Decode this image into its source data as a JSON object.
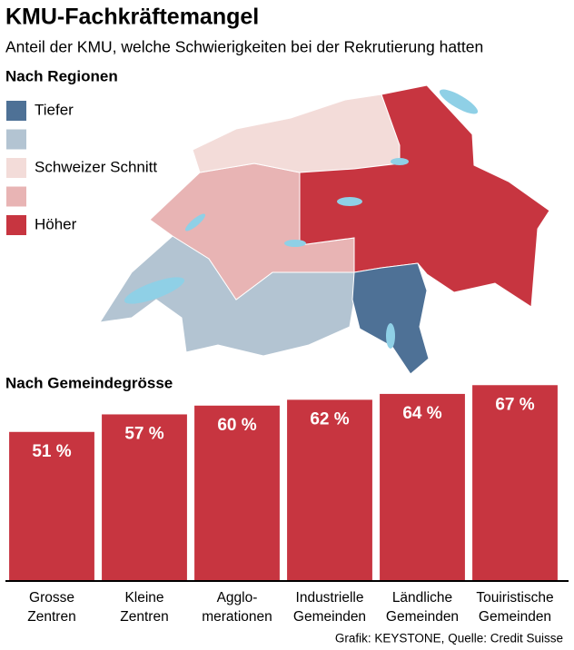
{
  "title": "KMU-Fachkräftemangel",
  "subtitle": "Anteil der KMU, welche Schwierigkeiten bei der Rekrutierung hatten",
  "map": {
    "heading": "Nach Regionen",
    "legend": [
      {
        "label": "Tiefer",
        "color": "#4e7196"
      },
      {
        "label": null,
        "color": "#b3c4d2"
      },
      {
        "label": "Schweizer Schnitt",
        "color": "#f3dcd9"
      },
      {
        "label": null,
        "color": "#e8b4b4"
      },
      {
        "label": "Höher",
        "color": "#c73540"
      }
    ]
  },
  "chart_data": {
    "type": "bar",
    "title": "Nach Gemeindegrösse",
    "categories": [
      "Grosse\nZentren",
      "Kleine\nZentren",
      "Agglo-\nmerationen",
      "Industrielle\nGemeinden",
      "Ländliche\nGemeinden",
      "Touiristische\nGemeinden"
    ],
    "values": [
      51,
      57,
      60,
      62,
      64,
      67
    ],
    "value_labels": [
      "51 %",
      "57 %",
      "60 %",
      "62 %",
      "64 %",
      "67 %"
    ],
    "color": "#c73540",
    "ylim": [
      0,
      100
    ]
  },
  "source": "Grafik: KEYSTONE, Quelle: Credit Suisse"
}
